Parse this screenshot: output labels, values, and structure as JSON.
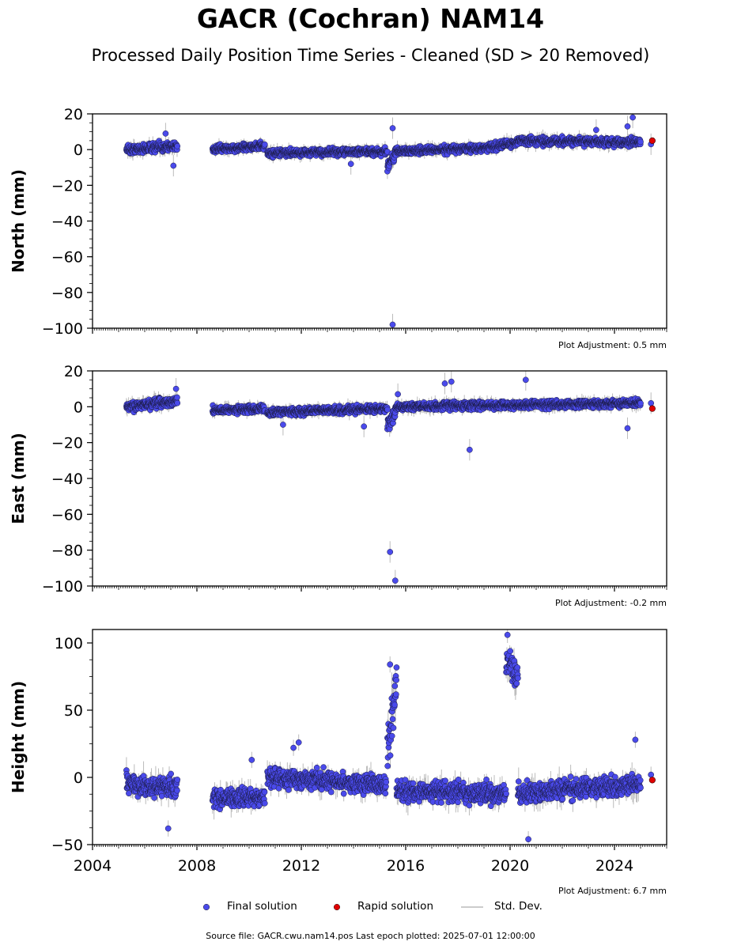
{
  "title": "GACR (Cochran) NAM14",
  "subtitle": "Processed Daily Position Time Series - Cleaned (SD > 20 Removed)",
  "legend": {
    "final": "Final solution",
    "rapid": "Rapid solution",
    "std": "Std. Dev."
  },
  "source": "Source file: GACR.cwu.nam14.pos  Last epoch plotted: 2025-07-01 12:00:00",
  "colors": {
    "final": "#4a4aeb",
    "rapid": "#e00000",
    "std": "#bbbbbb"
  },
  "chart_data": [
    {
      "type": "scatter",
      "ylabel": "North (mm)",
      "xlim": [
        2004,
        2026
      ],
      "ylim": [
        -100,
        20
      ],
      "yticks": [
        20,
        0,
        -20,
        -40,
        -60,
        -80,
        -100
      ],
      "ytick_labels": [
        "20",
        "0",
        "−20",
        "−40",
        "−60",
        "−80",
        "−100"
      ],
      "adjustment": "Plot Adjustment: 0.5 mm",
      "segments": [
        {
          "x0": 2005.3,
          "x1": 2007.25,
          "y0": 0,
          "y1": 2,
          "noise": 2.3
        },
        {
          "x0": 2008.6,
          "x1": 2010.6,
          "y0": 0,
          "y1": 2,
          "noise": 1.8
        },
        {
          "x0": 2010.7,
          "x1": 2015.3,
          "y0": -2,
          "y1": -1,
          "noise": 1.8
        },
        {
          "x0": 2015.3,
          "x1": 2015.6,
          "y0": -9,
          "y1": -3,
          "noise": 3.0
        },
        {
          "x0": 2015.6,
          "x1": 2019.0,
          "y0": -1,
          "y1": 1,
          "noise": 1.8
        },
        {
          "x0": 2019.0,
          "x1": 2020.3,
          "y0": 1,
          "y1": 4,
          "noise": 2.0
        },
        {
          "x0": 2020.3,
          "x1": 2025.0,
          "y0": 5,
          "y1": 4,
          "noise": 2.0
        }
      ],
      "outliers": [
        {
          "x": 2006.8,
          "y": 9
        },
        {
          "x": 2007.1,
          "y": -9
        },
        {
          "x": 2013.9,
          "y": -8
        },
        {
          "x": 2015.5,
          "y": 12
        },
        {
          "x": 2015.5,
          "y": -98
        },
        {
          "x": 2023.3,
          "y": 11
        },
        {
          "x": 2024.5,
          "y": 13
        },
        {
          "x": 2024.7,
          "y": 18
        },
        {
          "x": 2025.4,
          "y": 3
        }
      ],
      "rapid": [
        {
          "x": 2025.45,
          "y": 5
        }
      ]
    },
    {
      "type": "scatter",
      "ylabel": "East (mm)",
      "xlim": [
        2004,
        2026
      ],
      "ylim": [
        -100,
        20
      ],
      "yticks": [
        20,
        0,
        -20,
        -40,
        -60,
        -80,
        -100
      ],
      "ytick_labels": [
        "20",
        "0",
        "−20",
        "−40",
        "−60",
        "−80",
        "−100"
      ],
      "adjustment": "Plot Adjustment: -0.2 mm",
      "segments": [
        {
          "x0": 2005.3,
          "x1": 2007.25,
          "y0": 0,
          "y1": 3,
          "noise": 2.3
        },
        {
          "x0": 2008.6,
          "x1": 2010.6,
          "y0": -2,
          "y1": -1,
          "noise": 1.8
        },
        {
          "x0": 2010.7,
          "x1": 2015.3,
          "y0": -3,
          "y1": -1,
          "noise": 1.8
        },
        {
          "x0": 2015.3,
          "x1": 2015.6,
          "y0": -10,
          "y1": -4,
          "noise": 3.5
        },
        {
          "x0": 2015.6,
          "x1": 2025.0,
          "y0": 0,
          "y1": 2,
          "noise": 1.8
        }
      ],
      "outliers": [
        {
          "x": 2007.2,
          "y": 10
        },
        {
          "x": 2011.3,
          "y": -10
        },
        {
          "x": 2014.4,
          "y": -11
        },
        {
          "x": 2015.4,
          "y": -81
        },
        {
          "x": 2015.6,
          "y": -97
        },
        {
          "x": 2015.7,
          "y": 7
        },
        {
          "x": 2017.5,
          "y": 13
        },
        {
          "x": 2017.75,
          "y": 14
        },
        {
          "x": 2018.45,
          "y": -24
        },
        {
          "x": 2020.6,
          "y": 15
        },
        {
          "x": 2024.5,
          "y": -12
        },
        {
          "x": 2025.4,
          "y": 2
        }
      ],
      "rapid": [
        {
          "x": 2025.45,
          "y": -1
        }
      ]
    },
    {
      "type": "scatter",
      "ylabel": "Height (mm)",
      "xlim": [
        2004,
        2026
      ],
      "ylim": [
        -50,
        110
      ],
      "yticks": [
        100,
        50,
        0,
        -50
      ],
      "ytick_labels": [
        "100",
        "50",
        "0",
        "−50"
      ],
      "xticks": [
        2004,
        2008,
        2012,
        2016,
        2020,
        2024
      ],
      "adjustment": "Plot Adjustment: 6.7 mm",
      "segments": [
        {
          "x0": 2005.3,
          "x1": 2007.25,
          "y0": -5,
          "y1": -8,
          "noise": 7
        },
        {
          "x0": 2008.6,
          "x1": 2010.6,
          "y0": -15,
          "y1": -15,
          "noise": 6
        },
        {
          "x0": 2010.7,
          "x1": 2015.25,
          "y0": 0,
          "y1": -5,
          "noise": 6
        },
        {
          "x0": 2015.3,
          "x1": 2015.65,
          "y0": 20,
          "y1": 70,
          "noise": 14
        },
        {
          "x0": 2015.65,
          "x1": 2019.85,
          "y0": -10,
          "y1": -12,
          "noise": 6.5
        },
        {
          "x0": 2019.85,
          "x1": 2020.3,
          "y0": 90,
          "y1": 75,
          "noise": 9
        },
        {
          "x0": 2020.3,
          "x1": 2025.0,
          "y0": -12,
          "y1": -5,
          "noise": 6.5
        }
      ],
      "outliers": [
        {
          "x": 2006.9,
          "y": -38
        },
        {
          "x": 2010.1,
          "y": 13
        },
        {
          "x": 2011.7,
          "y": 22
        },
        {
          "x": 2011.9,
          "y": 26
        },
        {
          "x": 2015.4,
          "y": 84
        },
        {
          "x": 2019.9,
          "y": 106
        },
        {
          "x": 2020.7,
          "y": -46
        },
        {
          "x": 2024.8,
          "y": 28
        },
        {
          "x": 2025.4,
          "y": 2
        }
      ],
      "rapid": [
        {
          "x": 2025.45,
          "y": -2
        }
      ]
    }
  ]
}
